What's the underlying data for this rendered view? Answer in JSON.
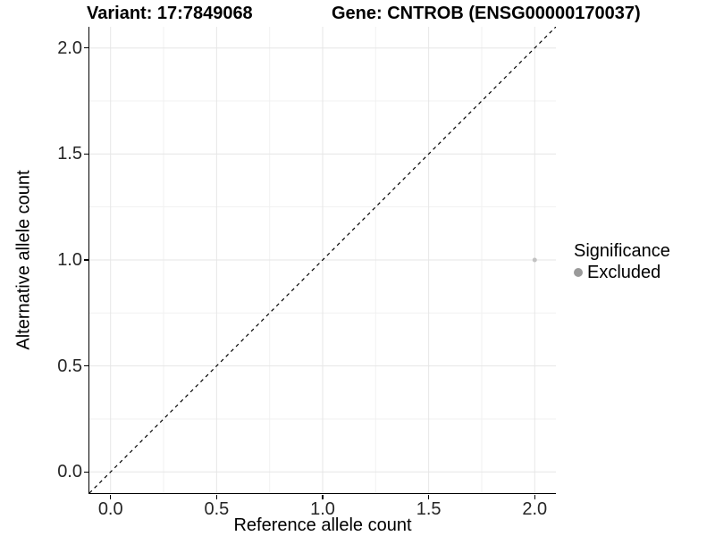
{
  "header": {
    "variant_title": "Variant: 17:7849068",
    "gene_title": "Gene: CNTROB (ENSG00000170037)"
  },
  "chart_data": {
    "type": "scatter",
    "title": "Variant: 17:7849068  Gene: CNTROB (ENSG00000170037)",
    "xlabel": "Reference allele count",
    "ylabel": "Alternative allele count",
    "xlim": [
      -0.1,
      2.1
    ],
    "ylim": [
      -0.1,
      2.1
    ],
    "x_ticks": [
      0.0,
      0.5,
      1.0,
      1.5,
      2.0
    ],
    "y_ticks": [
      0.0,
      0.5,
      1.0,
      1.5,
      2.0
    ],
    "x_minor_ticks": [
      0.25,
      0.75,
      1.25,
      1.75
    ],
    "y_minor_ticks": [
      0.25,
      0.75,
      1.25,
      1.75
    ],
    "tick_label_format_decimals": 1,
    "grid": "major+minor",
    "reference_line": {
      "type": "identity",
      "slope": 1,
      "intercept": 0,
      "style": "dashed",
      "color": "#000000"
    },
    "series": [
      {
        "name": "Excluded",
        "color": "#c2c2c2",
        "point_radius": 2.5,
        "points": [
          {
            "x": 2.0,
            "y": 1.0
          }
        ]
      }
    ],
    "legend": {
      "title": "Significance",
      "position": "right",
      "items": [
        {
          "label": "Excluded",
          "color": "#9a9a9a"
        }
      ]
    },
    "colors": {
      "grid_major": "#e6e6e6",
      "grid_minor": "#f1f1f1",
      "axis_line": "#000000",
      "tick_label": "#262626",
      "background": "#ffffff"
    }
  }
}
